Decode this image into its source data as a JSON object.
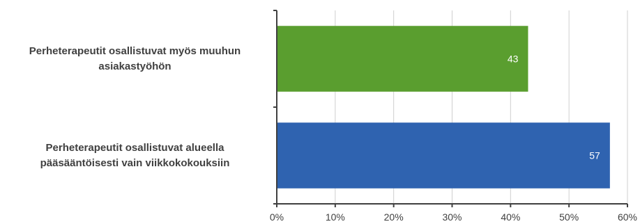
{
  "chart_data": {
    "type": "bar",
    "orientation": "horizontal",
    "categories": [
      "Perheterapeutit osallistuvat myös muuhun asiakastyöhön",
      "Perheterapeutit osallistuvat alueella pääsääntöisesti vain viikkokokouksiin"
    ],
    "category_lines": [
      [
        "Perheterapeutit osallistuvat myös muuhun",
        "asiakastyöhön"
      ],
      [
        "Perheterapeutit osallistuvat alueella",
        "pääsääntöisesti vain viikkokokouksiin"
      ]
    ],
    "values": [
      43,
      57
    ],
    "data_labels": [
      "43",
      "57"
    ],
    "bar_colors": [
      "#5a9e2f",
      "#2f63b0"
    ],
    "xlim": [
      0,
      60
    ],
    "xticks": [
      0,
      10,
      20,
      30,
      40,
      50,
      60
    ],
    "xtick_labels": [
      "0%",
      "10%",
      "20%",
      "30%",
      "40%",
      "50%",
      "60%"
    ],
    "grid": true,
    "title": "",
    "xlabel": "",
    "ylabel": ""
  }
}
